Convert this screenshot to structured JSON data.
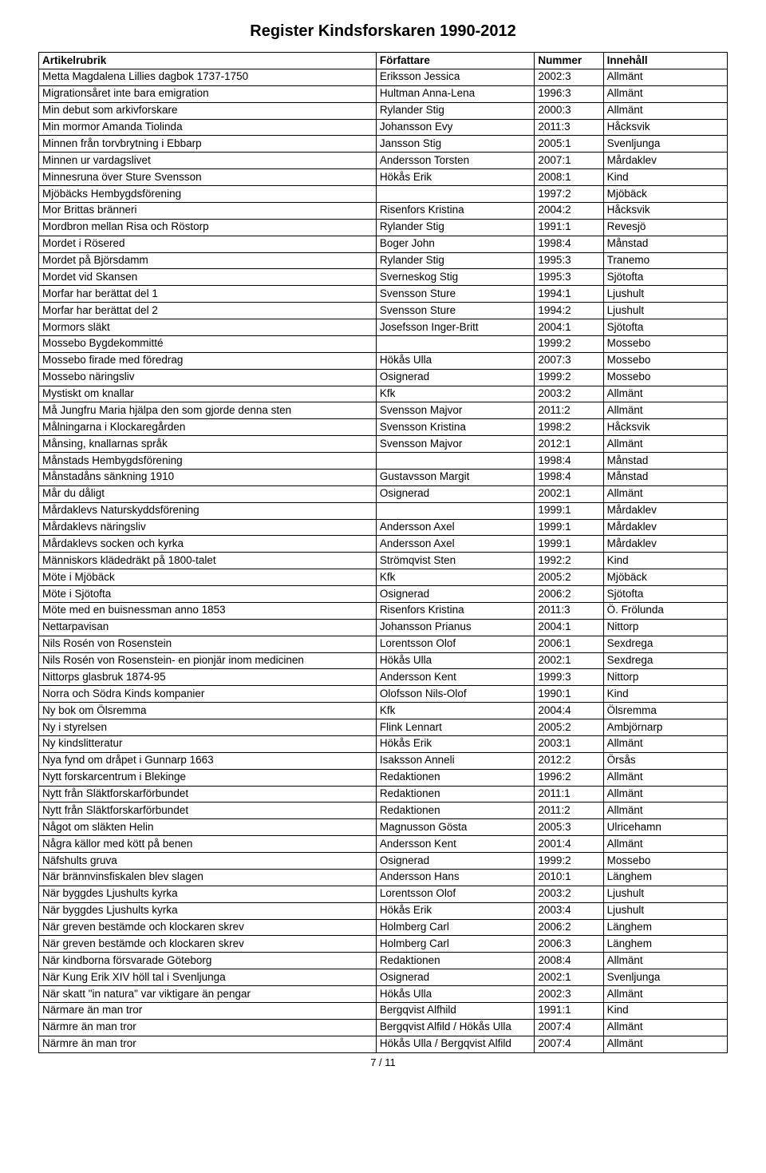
{
  "title": "Register Kindsforskaren 1990-2012",
  "headers": [
    "Artikelrubrik",
    "Författare",
    "Nummer",
    "Innehåll"
  ],
  "page_num": "7 / 11",
  "rows": [
    [
      "Metta Magdalena Lillies dagbok 1737-1750",
      "Eriksson Jessica",
      "2002:3",
      "Allmänt"
    ],
    [
      "Migrationsåret inte bara emigration",
      "Hultman Anna-Lena",
      "1996:3",
      "Allmänt"
    ],
    [
      "Min debut som arkivforskare",
      "Rylander Stig",
      "2000:3",
      "Allmänt"
    ],
    [
      "Min mormor Amanda Tiolinda",
      "Johansson Evy",
      "2011:3",
      "Håcksvik"
    ],
    [
      "Minnen från torvbrytning i Ebbarp",
      "Jansson Stig",
      "2005:1",
      "Svenljunga"
    ],
    [
      "Minnen ur vardagslivet",
      "Andersson Torsten",
      "2007:1",
      "Mårdaklev"
    ],
    [
      "Minnesruna över Sture Svensson",
      "Hökås Erik",
      "2008:1",
      "Kind"
    ],
    [
      "Mjöbäcks Hembygdsförening",
      "",
      "1997:2",
      "Mjöbäck"
    ],
    [
      "Mor Brittas bränneri",
      "Risenfors Kristina",
      "2004:2",
      "Håcksvik"
    ],
    [
      "Mordbron mellan Risa och Röstorp",
      "Rylander Stig",
      "1991:1",
      "Revesjö"
    ],
    [
      "Mordet i Rösered",
      "Boger John",
      "1998:4",
      "Månstad"
    ],
    [
      "Mordet på Björsdamm",
      "Rylander Stig",
      "1995:3",
      "Tranemo"
    ],
    [
      "Mordet vid Skansen",
      "Sverneskog Stig",
      "1995:3",
      "Sjötofta"
    ],
    [
      "Morfar har berättat del 1",
      "Svensson Sture",
      "1994:1",
      "Ljushult"
    ],
    [
      "Morfar har berättat del 2",
      "Svensson Sture",
      "1994:2",
      "Ljushult"
    ],
    [
      "Mormors släkt",
      "Josefsson Inger-Britt",
      "2004:1",
      "Sjötofta"
    ],
    [
      "Mossebo  Bygdekommitté",
      "",
      "1999:2",
      "Mossebo"
    ],
    [
      "Mossebo firade med föredrag",
      "Hökås Ulla",
      "2007:3",
      "Mossebo"
    ],
    [
      "Mossebo näringsliv",
      "Osignerad",
      "1999:2",
      "Mossebo"
    ],
    [
      "Mystiskt om knallar",
      "Kfk",
      "2003:2",
      "Allmänt"
    ],
    [
      "Må Jungfru Maria hjälpa den som gjorde denna sten",
      "Svensson Majvor",
      "2011:2",
      "Allmänt"
    ],
    [
      "Målningarna i Klockaregården",
      "Svensson Kristina",
      "1998:2",
      "Håcksvik"
    ],
    [
      "Månsing, knallarnas språk",
      "Svensson Majvor",
      "2012:1",
      "Allmänt"
    ],
    [
      "Månstads Hembygdsförening",
      "",
      "1998:4",
      "Månstad"
    ],
    [
      "Månstadåns sänkning 1910",
      "Gustavsson Margit",
      "1998:4",
      "Månstad"
    ],
    [
      "Mår du dåligt",
      "Osignerad",
      "2002:1",
      "Allmänt"
    ],
    [
      "Mårdaklevs Naturskyddsförening",
      "",
      "1999:1",
      "Mårdaklev"
    ],
    [
      "Mårdaklevs näringsliv",
      "Andersson Axel",
      "1999:1",
      "Mårdaklev"
    ],
    [
      "Mårdaklevs socken och kyrka",
      "Andersson Axel",
      "1999:1",
      "Mårdaklev"
    ],
    [
      "Människors klädedräkt på 1800-talet",
      "Strömqvist Sten",
      "1992:2",
      "Kind"
    ],
    [
      "Möte i Mjöbäck",
      "Kfk",
      "2005:2",
      "Mjöbäck"
    ],
    [
      "Möte i Sjötofta",
      "Osignerad",
      "2006:2",
      "Sjötofta"
    ],
    [
      "Möte med en buisnessman anno 1853",
      "Risenfors Kristina",
      "2011:3",
      "Ö. Frölunda"
    ],
    [
      "Nettarpavisan",
      "Johansson Prianus",
      "2004:1",
      "Nittorp"
    ],
    [
      "Nils Rosén von Rosenstein",
      "Lorentsson Olof",
      "2006:1",
      "Sexdrega"
    ],
    [
      "Nils Rosén von Rosenstein- en pionjär inom medicinen",
      "Hökås Ulla",
      "2002:1",
      "Sexdrega"
    ],
    [
      "Nittorps glasbruk 1874-95",
      "Andersson Kent",
      "1999:3",
      "Nittorp"
    ],
    [
      "Norra och Södra Kinds kompanier",
      "Olofsson Nils-Olof",
      "1990:1",
      "Kind"
    ],
    [
      "Ny bok om Ölsremma",
      "Kfk",
      "2004:4",
      "Ölsremma"
    ],
    [
      "Ny i styrelsen",
      "Flink Lennart",
      "2005:2",
      "Ambjörnarp"
    ],
    [
      "Ny kindslitteratur",
      "Hökås Erik",
      "2003:1",
      "Allmänt"
    ],
    [
      "Nya fynd om dråpet i Gunnarp 1663",
      "Isaksson Anneli",
      "2012:2",
      "Örsås"
    ],
    [
      "Nytt forskarcentrum i Blekinge",
      "Redaktionen",
      "1996:2",
      "Allmänt"
    ],
    [
      "Nytt från Släktforskarförbundet",
      "Redaktionen",
      "2011:1",
      "Allmänt"
    ],
    [
      "Nytt från Släktforskarförbundet",
      "Redaktionen",
      "2011:2",
      "Allmänt"
    ],
    [
      "Något om släkten Helin",
      "Magnusson Gösta",
      "2005:3",
      "Ulricehamn"
    ],
    [
      "Några källor med kött på benen",
      "Andersson Kent",
      "2001:4",
      "Allmänt"
    ],
    [
      "Näfshults gruva",
      "Osignerad",
      "1999:2",
      "Mossebo"
    ],
    [
      "När brännvinsfiskalen blev slagen",
      "Andersson Hans",
      "2010:1",
      "Länghem"
    ],
    [
      "När byggdes Ljushults kyrka",
      "Lorentsson Olof",
      "2003:2",
      "Ljushult"
    ],
    [
      "När byggdes Ljushults kyrka",
      "Hökås Erik",
      "2003:4",
      "Ljushult"
    ],
    [
      "När greven bestämde och klockaren skrev",
      "Holmberg Carl",
      "2006:2",
      "Länghem"
    ],
    [
      "När greven bestämde och klockaren skrev",
      "Holmberg Carl",
      "2006:3",
      "Länghem"
    ],
    [
      "När kindborna försvarade Göteborg",
      "Redaktionen",
      "2008:4",
      "Allmänt"
    ],
    [
      "När Kung Erik XIV höll tal i Svenljunga",
      "Osignerad",
      "2002:1",
      "Svenljunga"
    ],
    [
      "När skatt \"in natura\" var viktigare än pengar",
      "Hökås Ulla",
      "2002:3",
      "Allmänt"
    ],
    [
      "Närmare än man tror",
      "Bergqvist Alfhild",
      "1991:1",
      "Kind"
    ],
    [
      "Närmre än man tror",
      "Bergqvist Alfild / Hökås Ulla",
      "2007:4",
      "Allmänt"
    ],
    [
      "Närmre än man tror",
      "Hökås Ulla / Bergqvist Alfild",
      "2007:4",
      "Allmänt"
    ]
  ]
}
